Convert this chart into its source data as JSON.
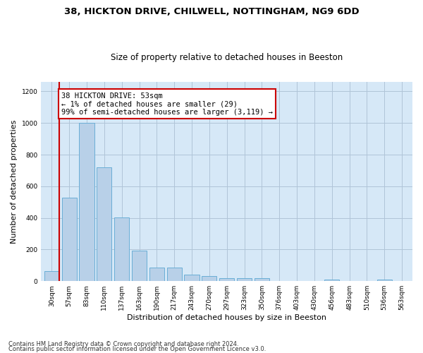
{
  "title1": "38, HICKTON DRIVE, CHILWELL, NOTTINGHAM, NG9 6DD",
  "title2": "Size of property relative to detached houses in Beeston",
  "xlabel": "Distribution of detached houses by size in Beeston",
  "ylabel": "Number of detached properties",
  "categories": [
    "30sqm",
    "57sqm",
    "83sqm",
    "110sqm",
    "137sqm",
    "163sqm",
    "190sqm",
    "217sqm",
    "243sqm",
    "270sqm",
    "297sqm",
    "323sqm",
    "350sqm",
    "376sqm",
    "403sqm",
    "430sqm",
    "456sqm",
    "483sqm",
    "510sqm",
    "536sqm",
    "563sqm"
  ],
  "values": [
    65,
    530,
    1000,
    720,
    405,
    195,
    88,
    88,
    40,
    33,
    17,
    20,
    20,
    3,
    3,
    3,
    12,
    3,
    0,
    12,
    0
  ],
  "bar_color": "#b8d0e8",
  "bar_edge_color": "#6aaed6",
  "annotation_text": "38 HICKTON DRIVE: 53sqm\n← 1% of detached houses are smaller (29)\n99% of semi-detached houses are larger (3,119) →",
  "annotation_box_color": "#ffffff",
  "annotation_box_edge": "#cc0000",
  "vline_color": "#cc0000",
  "vline_x": 0.45,
  "ylim": [
    0,
    1260
  ],
  "yticks": [
    0,
    200,
    400,
    600,
    800,
    1000,
    1200
  ],
  "grid_color": "#b0c4d8",
  "bg_color": "#d6e8f7",
  "footer1": "Contains HM Land Registry data © Crown copyright and database right 2024.",
  "footer2": "Contains public sector information licensed under the Open Government Licence v3.0.",
  "title1_fontsize": 9.5,
  "title2_fontsize": 8.5,
  "xlabel_fontsize": 8.0,
  "ylabel_fontsize": 8.0,
  "tick_fontsize": 6.5,
  "footer_fontsize": 6.0,
  "ann_fontsize": 7.5
}
